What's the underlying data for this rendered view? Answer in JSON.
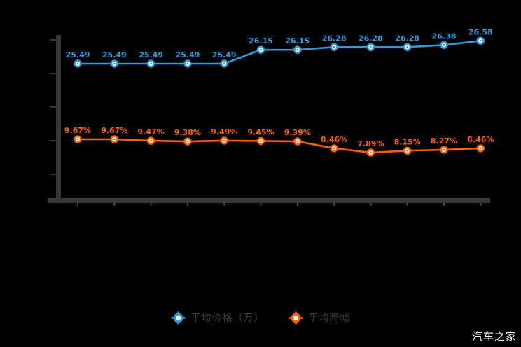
{
  "chart_data": {
    "type": "line",
    "title": "",
    "x_count": 12,
    "x_tick_labels_visible": false,
    "y_tick_labels_visible": false,
    "grid": false,
    "legend_position": "bottom",
    "background": "#000000",
    "axis_color": "#383838",
    "series": [
      {
        "name": "平均价格（万）",
        "color": "#3399db",
        "unit": "万",
        "values": [
          25.49,
          25.49,
          25.49,
          25.49,
          25.49,
          26.15,
          26.15,
          26.28,
          26.28,
          26.28,
          26.38,
          26.58
        ],
        "labels": [
          "25.49",
          "25.49",
          "25.49",
          "25.49",
          "25.49",
          "26.15",
          "26.15",
          "26.28",
          "26.28",
          "26.28",
          "26.38",
          "26.58"
        ]
      },
      {
        "name": "平均降幅",
        "color": "#ff6100",
        "unit": "%",
        "values": [
          9.67,
          9.67,
          9.47,
          9.38,
          9.49,
          9.45,
          9.39,
          8.46,
          7.89,
          8.15,
          8.27,
          8.46
        ],
        "labels": [
          "9.67%",
          "9.67%",
          "9.47%",
          "9.38%",
          "9.49%",
          "9.45%",
          "9.39%",
          "8.46%",
          "7.89%",
          "8.15%",
          "8.27%",
          "8.46%"
        ]
      }
    ]
  },
  "watermark": {
    "text": "汽车之家",
    "color": "#ffffff"
  }
}
